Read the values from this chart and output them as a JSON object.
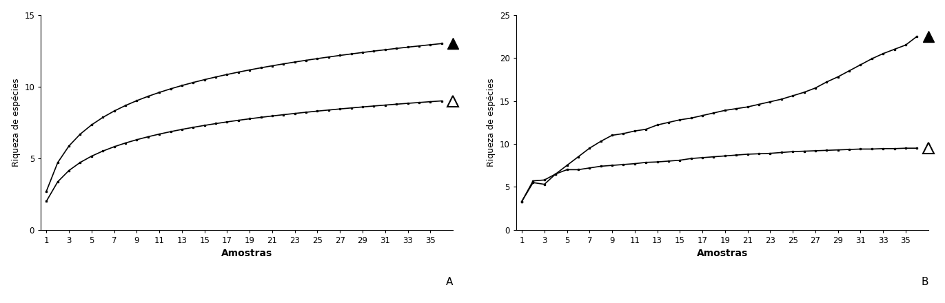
{
  "panel_A": {
    "title": "A",
    "xlabel": "Amostras",
    "ylabel": "Riqueza de espécies",
    "xlim": [
      0.5,
      37
    ],
    "ylim": [
      0,
      15
    ],
    "yticks": [
      0,
      5,
      10,
      15
    ],
    "xticks": [
      1,
      3,
      5,
      7,
      9,
      11,
      13,
      15,
      17,
      19,
      21,
      23,
      25,
      27,
      29,
      31,
      33,
      35
    ],
    "upper_start": 2.7,
    "upper_end": 13.0,
    "lower_start": 2.0,
    "lower_end": 9.0
  },
  "panel_B": {
    "title": "B",
    "xlabel": "Amostras",
    "ylabel": "Riqueza de espécies",
    "xlim": [
      0.5,
      37
    ],
    "ylim": [
      0,
      25
    ],
    "yticks": [
      0,
      5,
      10,
      15,
      20,
      25
    ],
    "xticks": [
      1,
      3,
      5,
      7,
      9,
      11,
      13,
      15,
      17,
      19,
      21,
      23,
      25,
      27,
      29,
      31,
      33,
      35
    ],
    "upper_end": 22.5,
    "lower_end": 9.5
  },
  "line_color": "#000000",
  "line_width": 1.2,
  "marker_size": 11,
  "marker_edge_width": 1.5,
  "xlabel_fontsize": 10,
  "ylabel_fontsize": 9,
  "tick_fontsize": 8.5,
  "label_fontsize": 11,
  "fig_width": 13.71,
  "fig_height": 4.4,
  "dpi": 100
}
